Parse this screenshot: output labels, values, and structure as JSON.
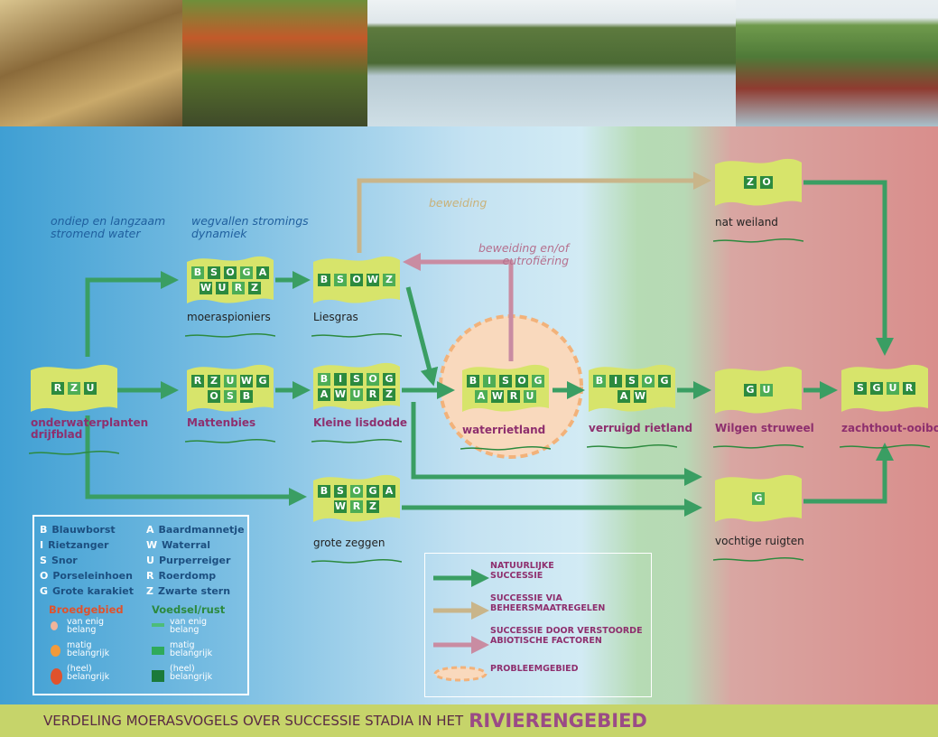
{
  "annotations": [
    {
      "lines": [
        "ondiep en langzaam",
        "stromend water"
      ],
      "color": "#1f5f9e"
    },
    {
      "lines": [
        "wegvallen stromings",
        "dynamiek"
      ],
      "color": "#1f5f9e"
    },
    {
      "lines": [
        "beweiding"
      ],
      "color": "#c9b27a"
    },
    {
      "lines": [
        "beweiding en/of",
        "eutrofiëring"
      ],
      "color": "#b5708e"
    }
  ],
  "nodes": [
    {
      "rows": [
        [
          "R",
          "Z",
          "U"
        ]
      ],
      "label_lines": [
        "onderwaterplanten",
        "drijfblad"
      ],
      "label_color": "#8e2f6e"
    },
    {
      "rows": [
        [
          "B",
          "S",
          "O",
          "G",
          "A"
        ],
        [
          "W",
          "U",
          "R",
          "Z"
        ]
      ],
      "label_lines": [
        "moeraspioniers"
      ],
      "label_color": "#222222"
    },
    {
      "rows": [
        [
          "R",
          "Z",
          "U",
          "W",
          "G"
        ],
        [
          "O",
          "S",
          "B"
        ]
      ],
      "label_lines": [
        "Mattenbies"
      ],
      "label_color": "#8e2f6e"
    },
    {
      "rows": [
        [
          "B",
          "S",
          "O",
          "W",
          "Z"
        ]
      ],
      "label_lines": [
        "Liesgras"
      ],
      "label_color": "#222222"
    },
    {
      "rows": [
        [
          "B",
          "I",
          "S",
          "O",
          "G"
        ],
        [
          "A",
          "W",
          "U",
          "R",
          "Z"
        ]
      ],
      "label_lines": [
        "Kleine lisdodde"
      ],
      "label_color": "#8e2f6e"
    },
    {
      "rows": [
        [
          "B",
          "S",
          "O",
          "G",
          "A"
        ],
        [
          "W",
          "R",
          "Z"
        ]
      ],
      "label_lines": [
        "grote zeggen"
      ],
      "label_color": "#222222"
    },
    {
      "rows": [
        [
          "B",
          "I",
          "S",
          "O",
          "G"
        ],
        [
          "A",
          "W",
          "R",
          "U"
        ]
      ],
      "label_lines": [
        "waterrietland"
      ],
      "label_color": "#8e2f6e"
    },
    {
      "rows": [
        [
          "B",
          "I",
          "S",
          "O",
          "G"
        ],
        [
          "A",
          "W"
        ]
      ],
      "label_lines": [
        "verruigd rietland"
      ],
      "label_color": "#8e2f6e"
    },
    {
      "rows": [
        [
          "Z",
          "O"
        ]
      ],
      "label_lines": [
        "nat weiland"
      ],
      "label_color": "#222222"
    },
    {
      "rows": [
        [
          "G",
          "U"
        ]
      ],
      "label_lines": [
        "Wilgen struweel"
      ],
      "label_color": "#8e2f6e"
    },
    {
      "rows": [
        [
          "G"
        ]
      ],
      "label_lines": [
        "vochtige ruigten"
      ],
      "label_color": "#222222"
    },
    {
      "rows": [
        [
          "S",
          "G",
          "U",
          "R"
        ]
      ],
      "label_lines": [
        "zachthout-ooibos"
      ],
      "label_color": "#8e2f6e"
    }
  ],
  "legend": {
    "species_left": [
      {
        "letter": "B",
        "name": "Blauwborst"
      },
      {
        "letter": "I",
        "name": "Rietzanger"
      },
      {
        "letter": "S",
        "name": "Snor"
      },
      {
        "letter": "O",
        "name": "Porseleinhoen"
      },
      {
        "letter": "G",
        "name": "Grote karakiet"
      }
    ],
    "species_right": [
      {
        "letter": "A",
        "name": "Baardmannetje"
      },
      {
        "letter": "W",
        "name": "Waterral"
      },
      {
        "letter": "U",
        "name": "Purperreiger"
      },
      {
        "letter": "R",
        "name": "Roerdomp"
      },
      {
        "letter": "Z",
        "name": "Zwarte stern"
      }
    ],
    "breeding": {
      "title": "Broedgebied",
      "items": [
        [
          "van enig",
          "belang"
        ],
        [
          "matig",
          "belangrijk"
        ],
        [
          "(heel)",
          "belangrijk"
        ]
      ]
    },
    "food": {
      "title": "Voedsel/rust",
      "items": [
        [
          "van enig",
          "belang"
        ],
        [
          "matig",
          "belangrijk"
        ],
        [
          "(heel)",
          "belangrijk"
        ]
      ]
    }
  },
  "flow_legend": [
    {
      "lines": [
        "NATUURLIJKE",
        "SUCCESSIE"
      ]
    },
    {
      "lines": [
        "SUCCESSIE VIA",
        "BEHEERSMAATREGELEN"
      ]
    },
    {
      "lines": [
        "SUCCESSIE DOOR VERSTOORDE",
        "ABIOTISCHE FACTOREN"
      ]
    },
    {
      "lines": [
        "PROBLEEMGEBIED"
      ]
    }
  ],
  "caption": {
    "text": "VERDELING MOERASVOGELS OVER SUCCESSIE STADIA IN HET",
    "highlight": "RIVIERENGEBIED"
  }
}
